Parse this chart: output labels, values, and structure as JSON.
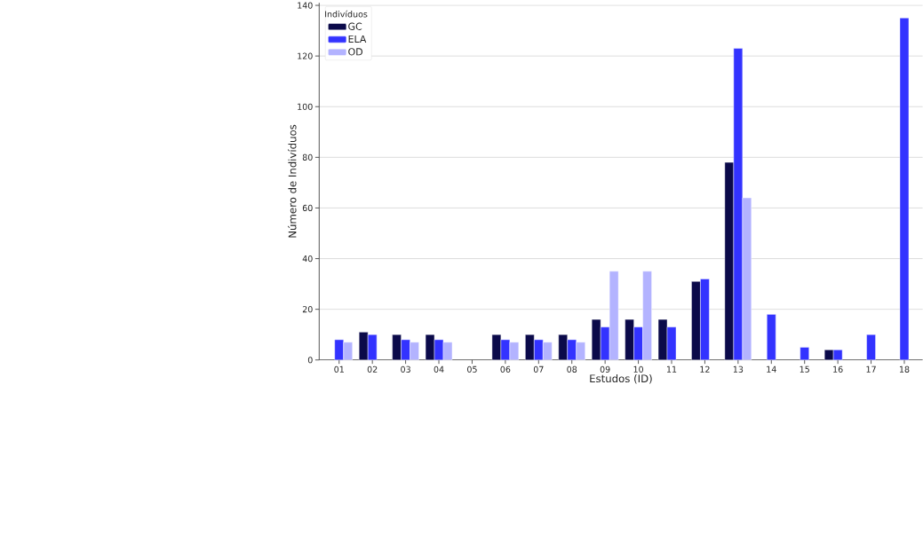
{
  "chart_data": {
    "type": "bar",
    "xlabel": "Estudos (ID)",
    "ylabel": "Número de Indivíduos",
    "legend_title": "Indivíduos",
    "categories": [
      "01",
      "02",
      "03",
      "04",
      "05",
      "06",
      "07",
      "08",
      "09",
      "10",
      "11",
      "12",
      "13",
      "14",
      "15",
      "16",
      "17",
      "18"
    ],
    "series": [
      {
        "name": "GC",
        "color": "#0b0a4a",
        "values": [
          null,
          11,
          10,
          10,
          null,
          10,
          10,
          10,
          16,
          16,
          16,
          31,
          78,
          null,
          null,
          4,
          null,
          null
        ]
      },
      {
        "name": "ELA",
        "color": "#3333ff",
        "values": [
          8,
          10,
          8,
          8,
          null,
          8,
          8,
          8,
          13,
          13,
          13,
          32,
          123,
          18,
          5,
          4,
          10,
          135
        ]
      },
      {
        "name": "OD",
        "color": "#b3b3ff",
        "values": [
          7,
          null,
          7,
          7,
          null,
          7,
          7,
          7,
          35,
          35,
          null,
          null,
          64,
          null,
          null,
          null,
          null,
          null
        ]
      }
    ],
    "ylim": [
      0,
      141
    ],
    "yticks": [
      0,
      20,
      40,
      60,
      80,
      100,
      120,
      140
    ],
    "grid": "y",
    "legend": "top left"
  }
}
